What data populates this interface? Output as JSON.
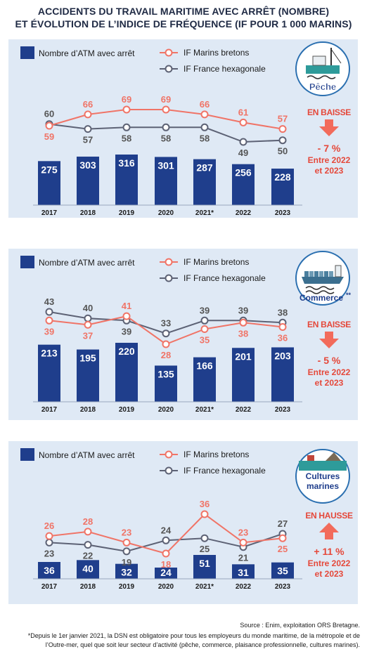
{
  "title": {
    "line1": "ACCIDENTS DU TRAVAIL MARITIME AVEC ARRÊT (NOMBRE)",
    "line2": "ET ÉVOLUTION DE L’INDICE DE FRÉQUENCE (IF POUR 1 000 MARINS)"
  },
  "legend": {
    "bars": "Nombre d’ATM avec arrêt",
    "bretons": "IF Marins bretons",
    "france": "IF France hexagonale"
  },
  "colors": {
    "panel_bg": "#dfe9f5",
    "bar": "#1f3e8c",
    "bretons": "#f07467",
    "france": "#5d6275",
    "down_arrow": "#f26b5b",
    "up_arrow": "#f26b5b"
  },
  "chart_data": [
    {
      "type": "bar",
      "sector": "Pêche",
      "categories": [
        "2017",
        "2018",
        "2019",
        "2020",
        "2021*",
        "2022",
        "2023"
      ],
      "series": [
        {
          "name": "Nombre d’ATM avec arrêt",
          "type": "bar",
          "values": [
            275,
            303,
            316,
            301,
            287,
            256,
            228
          ]
        },
        {
          "name": "IF Marins bretons",
          "type": "line",
          "values": [
            59,
            66,
            69,
            69,
            66,
            61,
            57
          ]
        },
        {
          "name": "IF France hexagonale",
          "type": "line",
          "values": [
            60,
            57,
            58,
            58,
            58,
            49,
            50
          ]
        }
      ],
      "trend": {
        "direction": "down",
        "label": "EN BAISSE",
        "change": "- 7 %",
        "period_1": "Entre 2022",
        "period_2": "et 2023"
      },
      "icon": "fishing-boat-icon"
    },
    {
      "type": "bar",
      "sector": "Commerce",
      "sector_mark": "**",
      "categories": [
        "2017",
        "2018",
        "2019",
        "2020",
        "2021*",
        "2022",
        "2023"
      ],
      "series": [
        {
          "name": "Nombre d’ATM avec arrêt",
          "type": "bar",
          "values": [
            213,
            195,
            220,
            135,
            166,
            201,
            203
          ]
        },
        {
          "name": "IF Marins bretons",
          "type": "line",
          "values": [
            39,
            37,
            41,
            28,
            35,
            38,
            36
          ]
        },
        {
          "name": "IF France hexagonale",
          "type": "line",
          "values": [
            43,
            40,
            39,
            33,
            39,
            39,
            38
          ]
        }
      ],
      "trend": {
        "direction": "down",
        "label": "EN BAISSE",
        "change": "- 5 %",
        "period_1": "Entre 2022",
        "period_2": "et 2023"
      },
      "icon": "cargo-ship-icon"
    },
    {
      "type": "bar",
      "sector": "Cultures marines",
      "sector_line1": "Cultures",
      "sector_line2": "marines",
      "categories": [
        "2017",
        "2018",
        "2019",
        "2020",
        "2021*",
        "2022",
        "2023"
      ],
      "series": [
        {
          "name": "Nombre d’ATM avec arrêt",
          "type": "bar",
          "values": [
            36,
            40,
            32,
            24,
            51,
            31,
            35
          ]
        },
        {
          "name": "IF Marins bretons",
          "type": "line",
          "values": [
            26,
            28,
            23,
            18,
            36,
            23,
            25
          ]
        },
        {
          "name": "IF France hexagonale",
          "type": "line",
          "values": [
            23,
            22,
            19,
            24,
            25,
            21,
            27
          ]
        }
      ],
      "trend": {
        "direction": "up",
        "label": "EN HAUSSE",
        "change": "+ 11 %",
        "period_1": "Entre 2022",
        "period_2": "et 2023"
      },
      "icon": "shellfish-barge-icon"
    }
  ],
  "footer": {
    "source": "Source : Enim, exploitation ORS Bretagne.",
    "note_1": "*Depuis le 1er janvier 2021, la DSN est obligatoire pour tous les employeurs du monde maritime, de la métropole et de",
    "note_2": "l’Outre-mer, quel que soit leur secteur d’activité (pêche, commerce, plaisance professionnelle, cultures marines)."
  }
}
